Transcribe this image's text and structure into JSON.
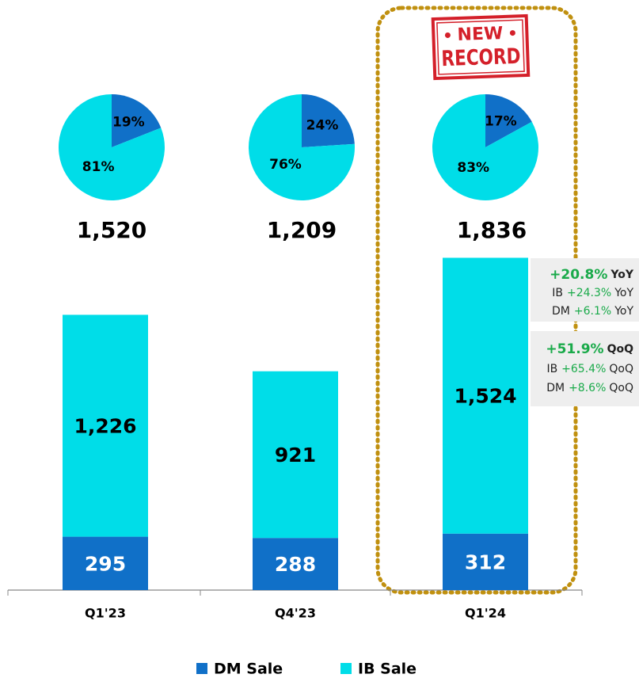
{
  "chart_data": [
    {
      "type": "bar",
      "stacked": true,
      "categories": [
        "Q1'23",
        "Q4'23",
        "Q1'24"
      ],
      "series": [
        {
          "name": "DM Sale",
          "color": "#1070c8",
          "label_color": "#ffffff",
          "values": [
            295,
            288,
            312
          ]
        },
        {
          "name": "IB Sale",
          "color": "#00dde8",
          "label_color": "#000000",
          "values": [
            1226,
            921,
            1524
          ],
          "value_labels": [
            "1,226",
            "921",
            "1,524"
          ]
        }
      ],
      "totals": [
        1520,
        1209,
        1836
      ],
      "total_labels": [
        "1,520",
        "1,209",
        "1,836"
      ],
      "legend": "bottom",
      "annotations": {
        "stamp": [
          "NEW",
          "RECORD"
        ],
        "growth": [
          [
            {
              "change": "+20.8%",
              "unit": "YoY"
            },
            {
              "label": "IB",
              "change": "+24.3%",
              "unit": "YoY"
            },
            {
              "label": "DM",
              "change": "+6.1%",
              "unit": "YoY"
            }
          ],
          [
            {
              "change": "+51.9%",
              "unit": "QoQ"
            },
            {
              "label": "IB",
              "change": "+65.4%",
              "unit": "QoQ"
            },
            {
              "label": "DM",
              "change": "+8.6%",
              "unit": "QoQ"
            }
          ]
        ]
      }
    },
    {
      "type": "pie",
      "values": [
        19,
        81
      ],
      "value_labels": [
        "19%",
        "81%"
      ],
      "colors": [
        "#1070c8",
        "#00dde8"
      ]
    },
    {
      "type": "pie",
      "values": [
        24,
        76
      ],
      "value_labels": [
        "24%",
        "76%"
      ],
      "colors": [
        "#1070c8",
        "#00dde8"
      ]
    },
    {
      "type": "pie",
      "values": [
        17,
        83
      ],
      "value_labels": [
        "17%",
        "83%"
      ],
      "colors": [
        "#1070c8",
        "#00dde8"
      ]
    }
  ]
}
